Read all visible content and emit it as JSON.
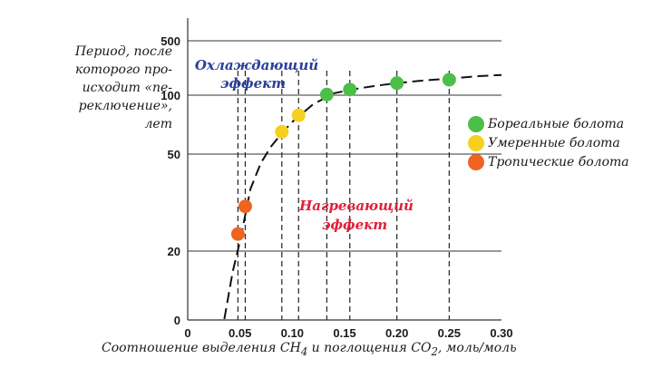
{
  "chart_data": {
    "type": "scatter",
    "ylabel_lines": [
      "Период, после",
      "которого про-",
      "исходит «пе-",
      "реключение»,",
      "лет"
    ],
    "xlabel_parts": {
      "pre": "Соотношение выделения CH",
      "sub1": "4",
      "mid": " и поглощения CO",
      "sub2": "2",
      "post": ", моль/моль"
    },
    "x_ticks": [
      "0",
      "0.05",
      "0.10",
      "0.15",
      "0.20",
      "0.25",
      "0.30"
    ],
    "y_ticks": [
      "0",
      "20",
      "50",
      "100",
      "500"
    ],
    "xlim": [
      0,
      0.3
    ],
    "y_scale": "log",
    "grid": "horizontal",
    "legend_position": "right",
    "annotations": {
      "cooling": [
        "Охлаждающий",
        "эффект"
      ],
      "warming": [
        "Нагревающий",
        "эффект"
      ]
    },
    "annotation_colors": {
      "cooling": "#2a3f9a",
      "warming": "#e0203a"
    },
    "series": [
      {
        "name": "Бореальные болота",
        "color": "#4cbf4a",
        "x": [
          0.133,
          0.155,
          0.2,
          0.25
        ],
        "y": [
          102,
          118,
          143,
          158
        ]
      },
      {
        "name": "Умеренные болота",
        "color": "#f7cf1e",
        "x": [
          0.09,
          0.106
        ],
        "y": [
          65,
          79
        ]
      },
      {
        "name": "Тропические болота",
        "color": "#ef6420",
        "x": [
          0.048,
          0.055
        ],
        "y": [
          23.5,
          30.5
        ]
      }
    ],
    "curve": {
      "x": [
        0.035,
        0.043,
        0.05,
        0.06,
        0.07,
        0.08,
        0.09,
        0.1,
        0.12,
        0.14,
        0.16,
        0.18,
        0.2,
        0.22,
        0.25,
        0.28,
        0.3
      ],
      "y": [
        0.3,
        14,
        22,
        36,
        46,
        55,
        64,
        73,
        90,
        106,
        120,
        132,
        143,
        152,
        164,
        176,
        182
      ]
    }
  }
}
